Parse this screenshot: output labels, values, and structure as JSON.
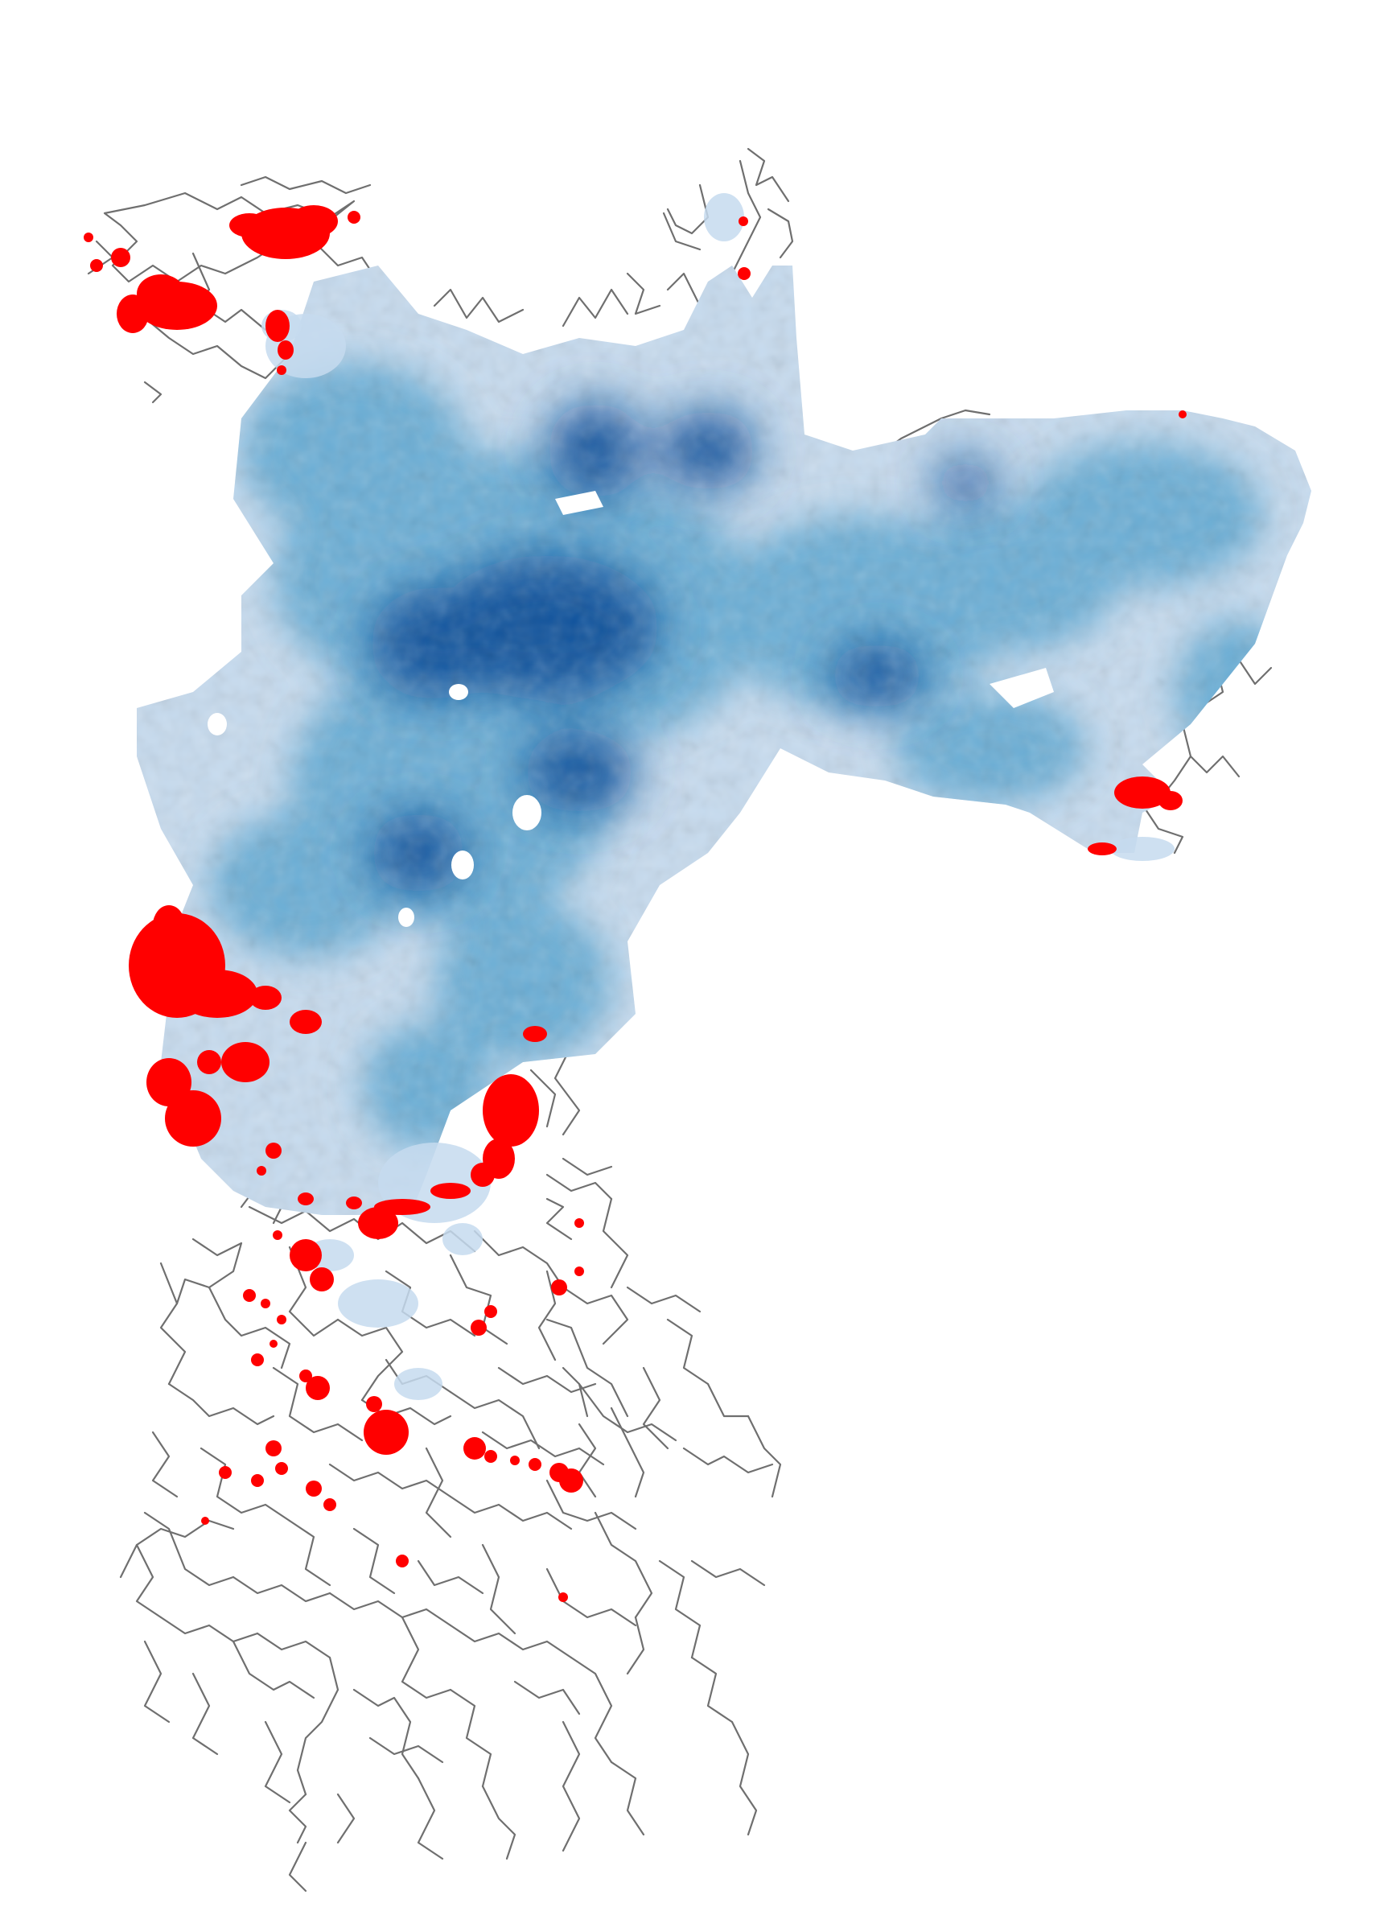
{
  "map": {
    "colors": {
      "background": "#ffffff",
      "road": "#6f6f6f",
      "density_light": "#c6dbef",
      "density_mid": "#6baed6",
      "density_dark": "#2171b5",
      "density_darkest": "#08519c",
      "hotspot": "#ff0000"
    },
    "layers": [
      "road-network",
      "density-surface",
      "hotspot-points"
    ]
  }
}
